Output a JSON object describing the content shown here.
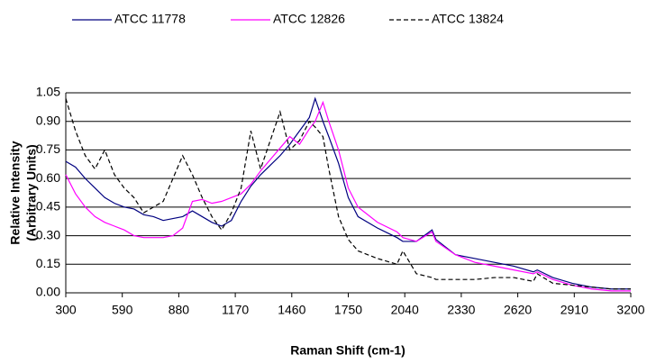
{
  "chart_data": {
    "type": "line",
    "xlabel": "Raman Shift (cm-1)",
    "ylabel": [
      "Relative Intensity",
      "(Arbitrary Units)"
    ],
    "x": [
      300,
      350,
      400,
      450,
      500,
      550,
      600,
      650,
      700,
      750,
      800,
      850,
      900,
      950,
      1000,
      1050,
      1100,
      1150,
      1200,
      1250,
      1300,
      1350,
      1400,
      1450,
      1500,
      1550,
      1580,
      1620,
      1650,
      1700,
      1750,
      1800,
      1900,
      2000,
      2030,
      2100,
      2180,
      2200,
      2300,
      2400,
      2500,
      2600,
      2700,
      2720,
      2800,
      2900,
      3000,
      3100,
      3200
    ],
    "series": [
      {
        "name": "ATCC 11778",
        "color": "#000080",
        "line_style": "solid",
        "values": [
          0.69,
          0.66,
          0.6,
          0.55,
          0.5,
          0.47,
          0.45,
          0.44,
          0.41,
          0.4,
          0.38,
          0.39,
          0.4,
          0.43,
          0.4,
          0.37,
          0.35,
          0.38,
          0.48,
          0.56,
          0.62,
          0.67,
          0.72,
          0.78,
          0.85,
          0.92,
          1.02,
          0.9,
          0.82,
          0.68,
          0.5,
          0.4,
          0.34,
          0.29,
          0.27,
          0.27,
          0.33,
          0.28,
          0.2,
          0.18,
          0.16,
          0.14,
          0.11,
          0.12,
          0.08,
          0.05,
          0.03,
          0.02,
          0.02
        ]
      },
      {
        "name": "ATCC 12826",
        "color": "#ff00ff",
        "line_style": "solid",
        "values": [
          0.62,
          0.52,
          0.45,
          0.4,
          0.37,
          0.35,
          0.33,
          0.3,
          0.29,
          0.29,
          0.29,
          0.3,
          0.34,
          0.48,
          0.49,
          0.47,
          0.48,
          0.5,
          0.52,
          0.57,
          0.64,
          0.7,
          0.76,
          0.82,
          0.78,
          0.86,
          0.9,
          1.0,
          0.9,
          0.75,
          0.55,
          0.45,
          0.37,
          0.32,
          0.29,
          0.27,
          0.32,
          0.27,
          0.2,
          0.16,
          0.14,
          0.12,
          0.1,
          0.11,
          0.07,
          0.04,
          0.02,
          0.01,
          0.01
        ]
      },
      {
        "name": "ATCC 13824",
        "color": "#000000",
        "line_style": "dashed",
        "values": [
          1.02,
          0.85,
          0.72,
          0.65,
          0.75,
          0.62,
          0.55,
          0.5,
          0.42,
          0.45,
          0.48,
          0.6,
          0.72,
          0.62,
          0.5,
          0.4,
          0.33,
          0.42,
          0.55,
          0.85,
          0.65,
          0.8,
          0.95,
          0.75,
          0.8,
          0.9,
          0.87,
          0.82,
          0.65,
          0.4,
          0.28,
          0.22,
          0.18,
          0.15,
          0.22,
          0.1,
          0.08,
          0.07,
          0.07,
          0.07,
          0.08,
          0.08,
          0.06,
          0.1,
          0.05,
          0.04,
          0.03,
          0.02,
          0.02
        ]
      }
    ],
    "xlim": [
      300,
      3200
    ],
    "xticks": [
      300,
      590,
      880,
      1170,
      1460,
      1750,
      2040,
      2330,
      2620,
      2910,
      3200
    ],
    "ylim": [
      0,
      1.05
    ],
    "yticks": [
      {
        "value": 0,
        "label": "0.00"
      },
      {
        "value": 0.15,
        "label": "0.15"
      },
      {
        "value": 0.3,
        "label": "0.30"
      },
      {
        "value": 0.45,
        "label": "0.45"
      },
      {
        "value": 0.6,
        "label": "0.60"
      },
      {
        "value": 0.75,
        "label": "0.75"
      },
      {
        "value": 0.9,
        "label": "0.90"
      },
      {
        "value": 1.05,
        "label": "1.05"
      }
    ],
    "grid": true,
    "legend": "top"
  }
}
